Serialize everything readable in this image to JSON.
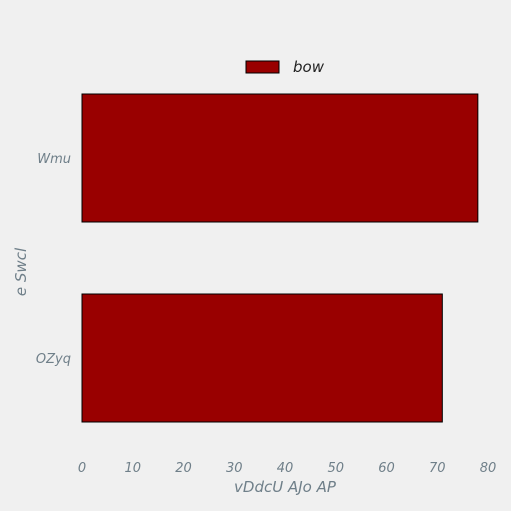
{
  "chart_data": {
    "type": "bar",
    "orientation": "horizontal",
    "categories": [
      "Wmu",
      "OZyq"
    ],
    "series": [
      {
        "name": "bow",
        "values": [
          78,
          71
        ],
        "color": "#990000"
      }
    ],
    "xlabel": "vDdcU AJo AP",
    "ylabel": "e Swcl",
    "xlim": [
      0,
      80
    ],
    "xticks": [
      "0",
      "10",
      "20",
      "30",
      "40",
      "50",
      "60",
      "70",
      "80"
    ],
    "grid": false,
    "legend_position": "top-center"
  }
}
